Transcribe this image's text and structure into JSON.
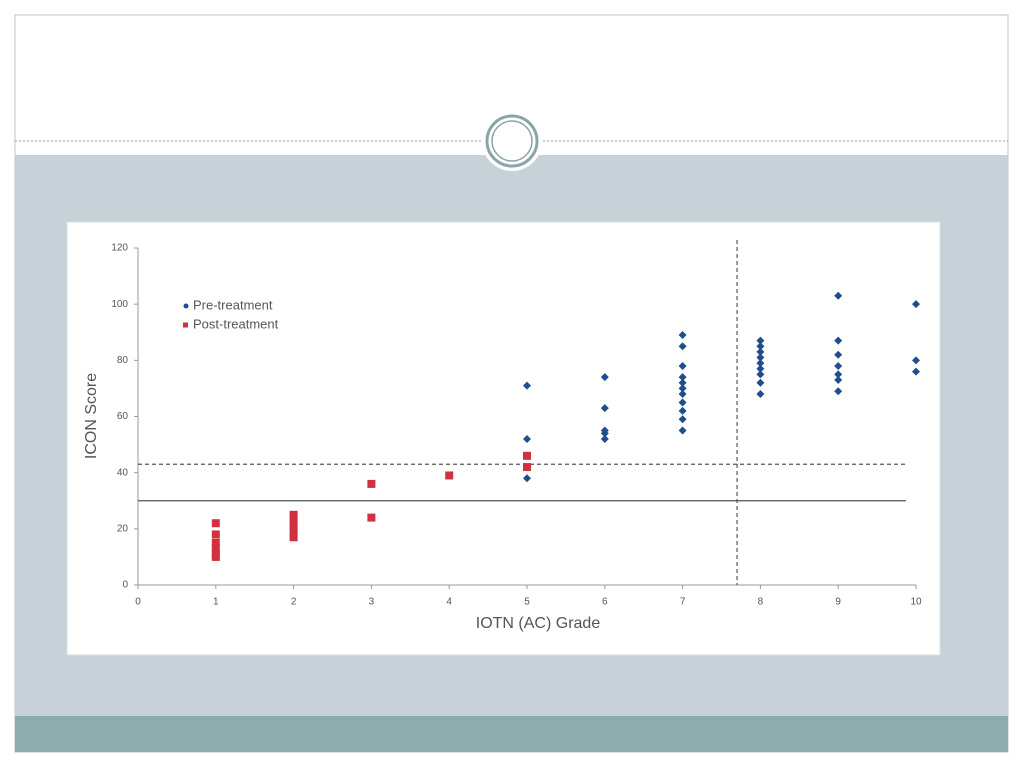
{
  "chart_data": {
    "type": "scatter",
    "xlabel": "IOTN (AC) Grade",
    "ylabel": "ICON Score",
    "xlim": [
      0,
      10
    ],
    "ylim": [
      0,
      120
    ],
    "xticks": [
      0,
      1,
      2,
      3,
      4,
      5,
      6,
      7,
      8,
      9,
      10
    ],
    "yticks": [
      0,
      20,
      40,
      60,
      80,
      100,
      120
    ],
    "legend": "upper left",
    "hlines": [
      {
        "value": 43,
        "style": "dashed"
      },
      {
        "value": 30,
        "style": "solid"
      }
    ],
    "vlines": [
      {
        "value": 7.7,
        "style": "dashed"
      }
    ],
    "series": [
      {
        "name": "Pre-treatment",
        "color": "#1f4e8c",
        "marker": "diamond",
        "x": [
          5,
          5,
          5,
          6,
          6,
          6,
          6,
          6,
          7,
          7,
          7,
          7,
          7,
          7,
          7,
          7,
          7,
          7,
          7,
          8,
          8,
          8,
          8,
          8,
          8,
          8,
          8,
          8,
          9,
          9,
          9,
          9,
          9,
          9,
          9,
          10,
          10,
          10
        ],
        "values": [
          71,
          52,
          38,
          74,
          63,
          55,
          54,
          52,
          89,
          85,
          78,
          74,
          72,
          70,
          68,
          65,
          62,
          59,
          55,
          87,
          85,
          83,
          81,
          79,
          77,
          75,
          72,
          68,
          103,
          87,
          82,
          78,
          75,
          73,
          69,
          100,
          80,
          76
        ]
      },
      {
        "name": "Post-treatment",
        "color": "#d0303f",
        "marker": "square",
        "x": [
          1,
          1,
          1,
          1,
          1,
          1,
          2,
          2,
          2,
          2,
          2,
          3,
          3,
          4,
          5,
          5
        ],
        "values": [
          22,
          18,
          15,
          13,
          11,
          10,
          25,
          23,
          21,
          19,
          17,
          36,
          24,
          39,
          46,
          42
        ]
      }
    ]
  }
}
